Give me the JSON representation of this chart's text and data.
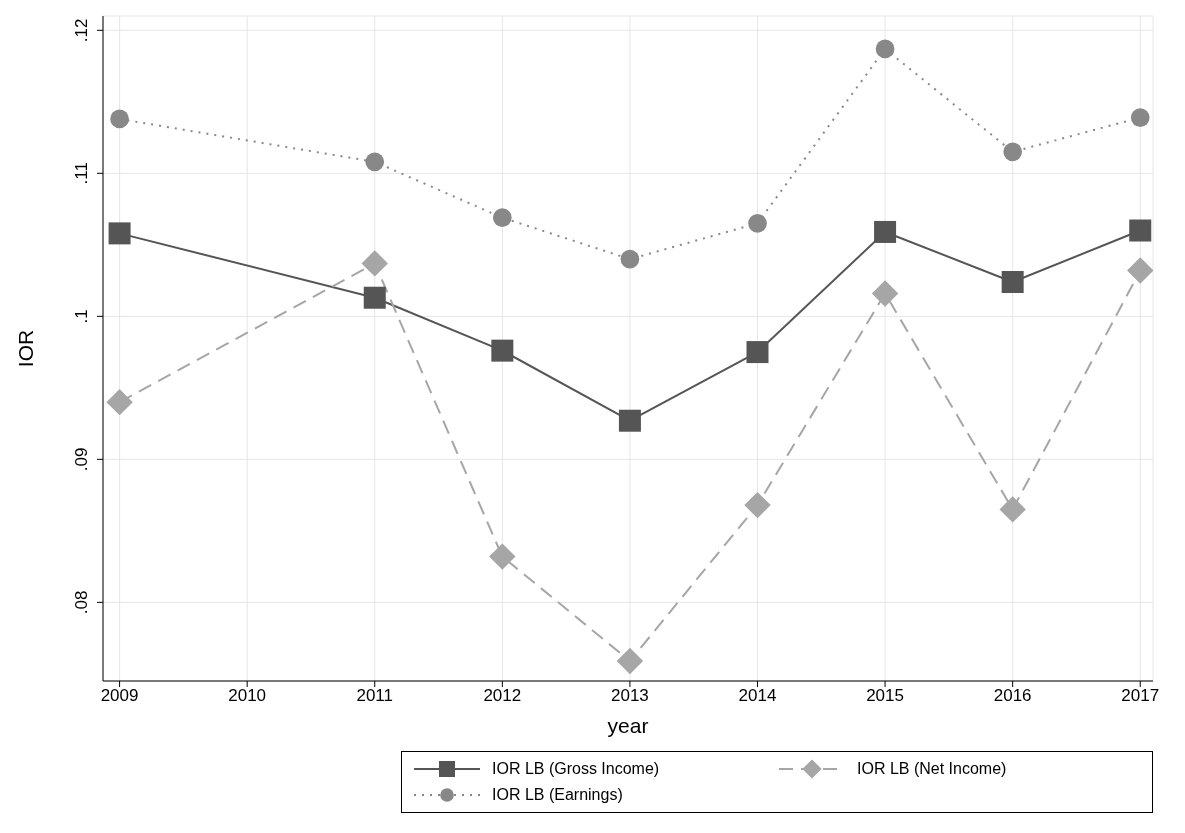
{
  "chart_data": {
    "type": "line",
    "xlabel": "year",
    "ylabel": "IOR",
    "x": [
      2009,
      2011,
      2012,
      2013,
      2014,
      2015,
      2016,
      2017
    ],
    "xlim": [
      2008.87,
      2017.1
    ],
    "xticks": [
      2009,
      2010,
      2011,
      2012,
      2013,
      2014,
      2015,
      2016,
      2017
    ],
    "ylim": [
      0.0745,
      0.121
    ],
    "yticks": [
      {
        "value": 0.08,
        "label": ".08"
      },
      {
        "value": 0.09,
        "label": ".09"
      },
      {
        "value": 0.1,
        "label": ".1"
      },
      {
        "value": 0.11,
        "label": ".11"
      },
      {
        "value": 0.12,
        "label": ".12"
      }
    ],
    "grid": true,
    "legend": "bottom right",
    "series": [
      {
        "name": "IOR LB (Gross Income)",
        "color": "#555555",
        "marker": "square",
        "line_style": "solid",
        "values": [
          0.1058,
          0.1013,
          0.0976,
          0.0927,
          0.0975,
          0.1059,
          0.1024,
          0.106
        ]
      },
      {
        "name": "IOR LB (Net Income)",
        "color": "#a6a6a6",
        "marker": "diamond",
        "line_style": "dashed",
        "values": [
          0.094,
          0.1037,
          0.0832,
          0.0759,
          0.0868,
          0.1016,
          0.0865,
          0.1032
        ]
      },
      {
        "name": "IOR LB (Earnings)",
        "color": "#888888",
        "marker": "circle",
        "line_style": "dotted",
        "values": [
          0.1138,
          0.1108,
          0.1069,
          0.104,
          0.1065,
          0.1187,
          0.1115,
          0.1139
        ]
      }
    ]
  }
}
